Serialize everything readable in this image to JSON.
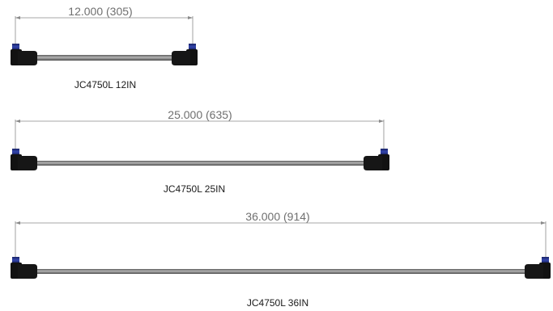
{
  "cables": [
    {
      "dimension": "12.000 (305)",
      "part_label": "JC4750L 12IN",
      "length_in": 12.0,
      "length_mm": 305
    },
    {
      "dimension": "25.000 (635)",
      "part_label": "JC4750L 25IN",
      "length_in": 25.0,
      "length_mm": 635
    },
    {
      "dimension": "36.000 (914)",
      "part_label": "JC4750L 36IN",
      "length_in": 36.0,
      "length_mm": 914
    }
  ],
  "colors": {
    "background": "#ffffff",
    "dimension_line": "#8a8a8a",
    "dimension_text": "#6f6f6f",
    "label_text": "#1a1a1a",
    "cable_body": "#7d7d7d",
    "connector_body": "#121212",
    "connector_cap": "#2b3a8f"
  }
}
